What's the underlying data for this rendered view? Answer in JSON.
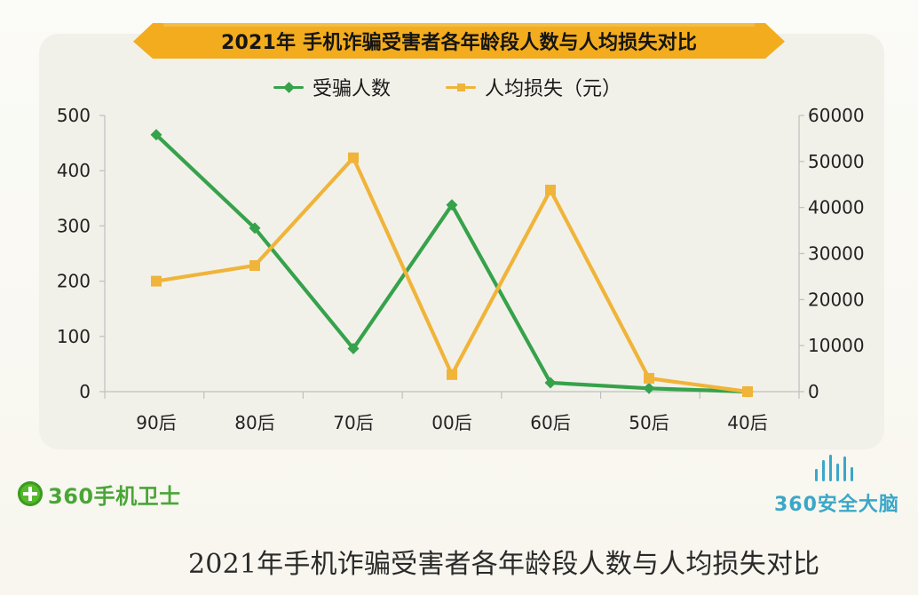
{
  "title": "2021年 手机诈骗受害者各年龄段人数与人均损失对比",
  "caption": "2021年手机诈骗受害者各年龄段人数与人均损失对比",
  "brands": {
    "left": "360手机卫士",
    "right": "360安全大脑"
  },
  "colors": {
    "victims": "#36a24b",
    "loss": "#f0b43a",
    "banner": "#f2ac1d"
  },
  "legend": {
    "victims": "受骗人数",
    "loss": "人均损失（元）"
  },
  "axes": {
    "left_ticks": [
      "0",
      "100",
      "200",
      "300",
      "400",
      "500"
    ],
    "right_ticks": [
      "0",
      "10000",
      "20000",
      "30000",
      "40000",
      "50000",
      "60000"
    ]
  },
  "chart_data": {
    "type": "line",
    "title": "2021年 手机诈骗受害者各年龄段人数与人均损失对比",
    "categories": [
      "90后",
      "80后",
      "70后",
      "00后",
      "60后",
      "50后",
      "40后"
    ],
    "series": [
      {
        "name": "受骗人数",
        "axis": "left",
        "values": [
          465,
          296,
          78,
          338,
          16,
          6,
          0
        ],
        "color": "#36a24b",
        "marker": "diamond"
      },
      {
        "name": "人均损失（元）",
        "axis": "right",
        "values": [
          24000,
          27400,
          50800,
          3700,
          43800,
          2900,
          0
        ],
        "color": "#f0b43a",
        "marker": "square"
      }
    ],
    "y_left_range": [
      0,
      500
    ],
    "y_right_range": [
      0,
      60000
    ],
    "grid": false,
    "legend_position": "top-center"
  }
}
